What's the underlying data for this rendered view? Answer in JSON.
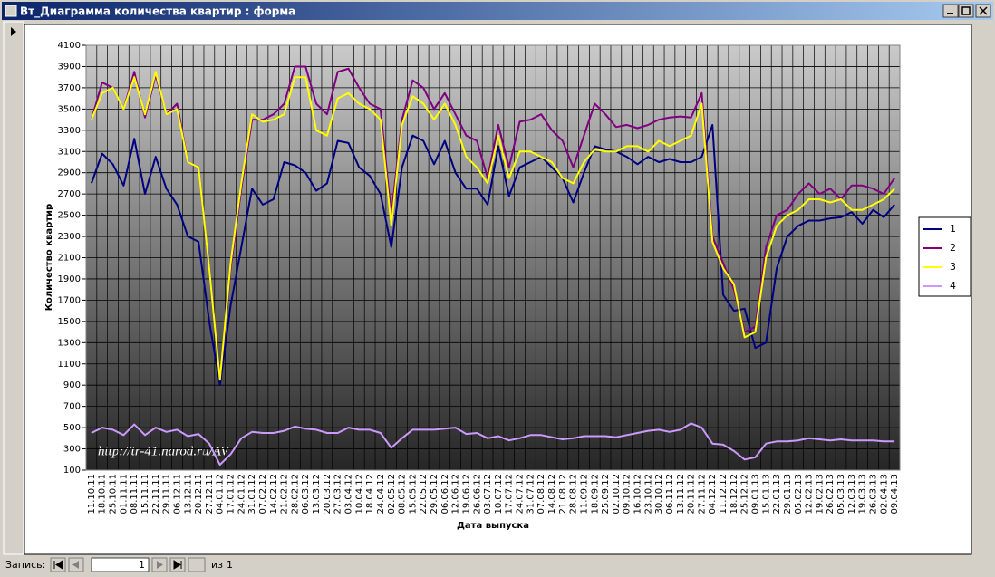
{
  "window": {
    "title": "Вт_Диаграмма количества квартир : форма"
  },
  "chart_data": {
    "type": "line",
    "y_label": "Количество квартир",
    "x_label": "Дата выпуска",
    "watermark": "http://tr-41.narod.ru/AV",
    "categories": [
      "11.10.11",
      "18.10.11",
      "25.10.11",
      "01.11.11",
      "08.11.11",
      "15.11.11",
      "22.11.11",
      "29.11.11",
      "06.12.11",
      "13.12.11",
      "20.12.11",
      "27.12.11",
      "04.01.12",
      "17.01.12",
      "24.01.12",
      "31.01.12",
      "07.02.12",
      "14.02.12",
      "21.02.12",
      "28.02.12",
      "06.03.12",
      "13.03.12",
      "20.03.12",
      "27.03.12",
      "03.04.12",
      "10.04.12",
      "18.04.12",
      "24.04.12",
      "02.05.12",
      "08.05.12",
      "15.05.12",
      "22.05.12",
      "29.05.12",
      "06.06.12",
      "12.06.12",
      "19.06.12",
      "26.06.12",
      "03.07.12",
      "10.07.12",
      "17.07.12",
      "24.07.12",
      "31.07.12",
      "07.08.12",
      "14.08.12",
      "21.08.12",
      "28.08.12",
      "11.09.12",
      "18.09.12",
      "25.09.12",
      "02.10.12",
      "09.10.12",
      "16.10.12",
      "23.10.12",
      "30.10.12",
      "06.11.12",
      "13.11.12",
      "20.11.12",
      "27.11.12",
      "04.12.12",
      "11.12.12",
      "18.12.12",
      "25.12.12",
      "09.01.13",
      "15.01.13",
      "22.01.13",
      "29.01.13",
      "05.02.13",
      "12.02.13",
      "19.02.13",
      "26.02.13",
      "05.03.13",
      "12.03.13",
      "19.03.13",
      "26.03.13",
      "02.04.13",
      "09.04.13"
    ],
    "series": [
      {
        "name": "1",
        "color": "#000080",
        "values": [
          2800,
          3080,
          2980,
          2780,
          3220,
          2700,
          3050,
          2750,
          2600,
          2300,
          2250,
          1500,
          900,
          1650,
          2200,
          2750,
          2600,
          2650,
          3000,
          2970,
          2900,
          2730,
          2800,
          3200,
          3180,
          2950,
          2870,
          2700,
          2200,
          2950,
          3250,
          3200,
          2980,
          3200,
          2900,
          2750,
          2750,
          2600,
          3150,
          2680,
          2950,
          3000,
          3050,
          2950,
          2850,
          2620,
          2900,
          3150,
          3120,
          3100,
          3050,
          2980,
          3050,
          3000,
          3030,
          3000,
          3000,
          3050,
          3350,
          1750,
          1600,
          1620,
          1250,
          1300,
          2000,
          2300,
          2400,
          2450,
          2450,
          2470,
          2480,
          2530,
          2420,
          2550,
          2480,
          2600
        ]
      },
      {
        "name": "2",
        "color": "#800080",
        "values": [
          3400,
          3750,
          3700,
          3500,
          3850,
          3420,
          3820,
          3450,
          3550,
          3000,
          2950,
          2000,
          950,
          2000,
          2750,
          3400,
          3400,
          3450,
          3550,
          3900,
          3900,
          3550,
          3450,
          3850,
          3880,
          3700,
          3550,
          3500,
          2500,
          3400,
          3770,
          3700,
          3500,
          3650,
          3450,
          3250,
          3200,
          2850,
          3350,
          2950,
          3380,
          3400,
          3450,
          3300,
          3200,
          2950,
          3250,
          3550,
          3450,
          3330,
          3350,
          3320,
          3350,
          3400,
          3420,
          3430,
          3420,
          3650,
          2300,
          2050,
          1800,
          1400,
          1450,
          2200,
          2500,
          2550,
          2700,
          2800,
          2700,
          2750,
          2650,
          2780,
          2780,
          2750,
          2700,
          2850
        ]
      },
      {
        "name": "3",
        "color": "#ffff00",
        "values": [
          3400,
          3650,
          3700,
          3500,
          3800,
          3450,
          3850,
          3450,
          3500,
          3000,
          2950,
          2000,
          950,
          2050,
          2800,
          3450,
          3380,
          3400,
          3450,
          3800,
          3800,
          3300,
          3250,
          3600,
          3650,
          3550,
          3500,
          3400,
          2400,
          3350,
          3620,
          3550,
          3400,
          3550,
          3350,
          3050,
          2950,
          2800,
          3250,
          2850,
          3100,
          3100,
          3050,
          3000,
          2850,
          2800,
          3000,
          3120,
          3100,
          3100,
          3150,
          3150,
          3100,
          3200,
          3150,
          3200,
          3250,
          3550,
          2250,
          2000,
          1850,
          1350,
          1400,
          2100,
          2400,
          2500,
          2550,
          2650,
          2650,
          2620,
          2650,
          2550,
          2550,
          2600,
          2650,
          2750
        ]
      },
      {
        "name": "4",
        "color": "#cc99ff",
        "values": [
          450,
          500,
          480,
          430,
          530,
          430,
          500,
          460,
          480,
          420,
          440,
          350,
          150,
          250,
          400,
          460,
          450,
          450,
          470,
          510,
          490,
          480,
          450,
          450,
          500,
          480,
          480,
          450,
          310,
          400,
          480,
          480,
          480,
          490,
          500,
          440,
          450,
          400,
          420,
          380,
          400,
          430,
          430,
          410,
          390,
          400,
          420,
          420,
          420,
          410,
          430,
          450,
          470,
          480,
          460,
          480,
          540,
          500,
          350,
          340,
          280,
          200,
          220,
          350,
          370,
          370,
          380,
          400,
          390,
          380,
          390,
          380,
          380,
          380,
          370,
          370
        ]
      }
    ],
    "ylim": [
      100,
      4100
    ],
    "yticks": [
      100,
      300,
      500,
      700,
      900,
      1100,
      1300,
      1500,
      1700,
      1900,
      2100,
      2300,
      2500,
      2700,
      2900,
      3100,
      3300,
      3500,
      3700,
      3900,
      4100
    ],
    "grid": true,
    "legend": "right"
  },
  "record_nav": {
    "label": "Запись:",
    "current": "1",
    "of_label": "из",
    "total": "1"
  }
}
